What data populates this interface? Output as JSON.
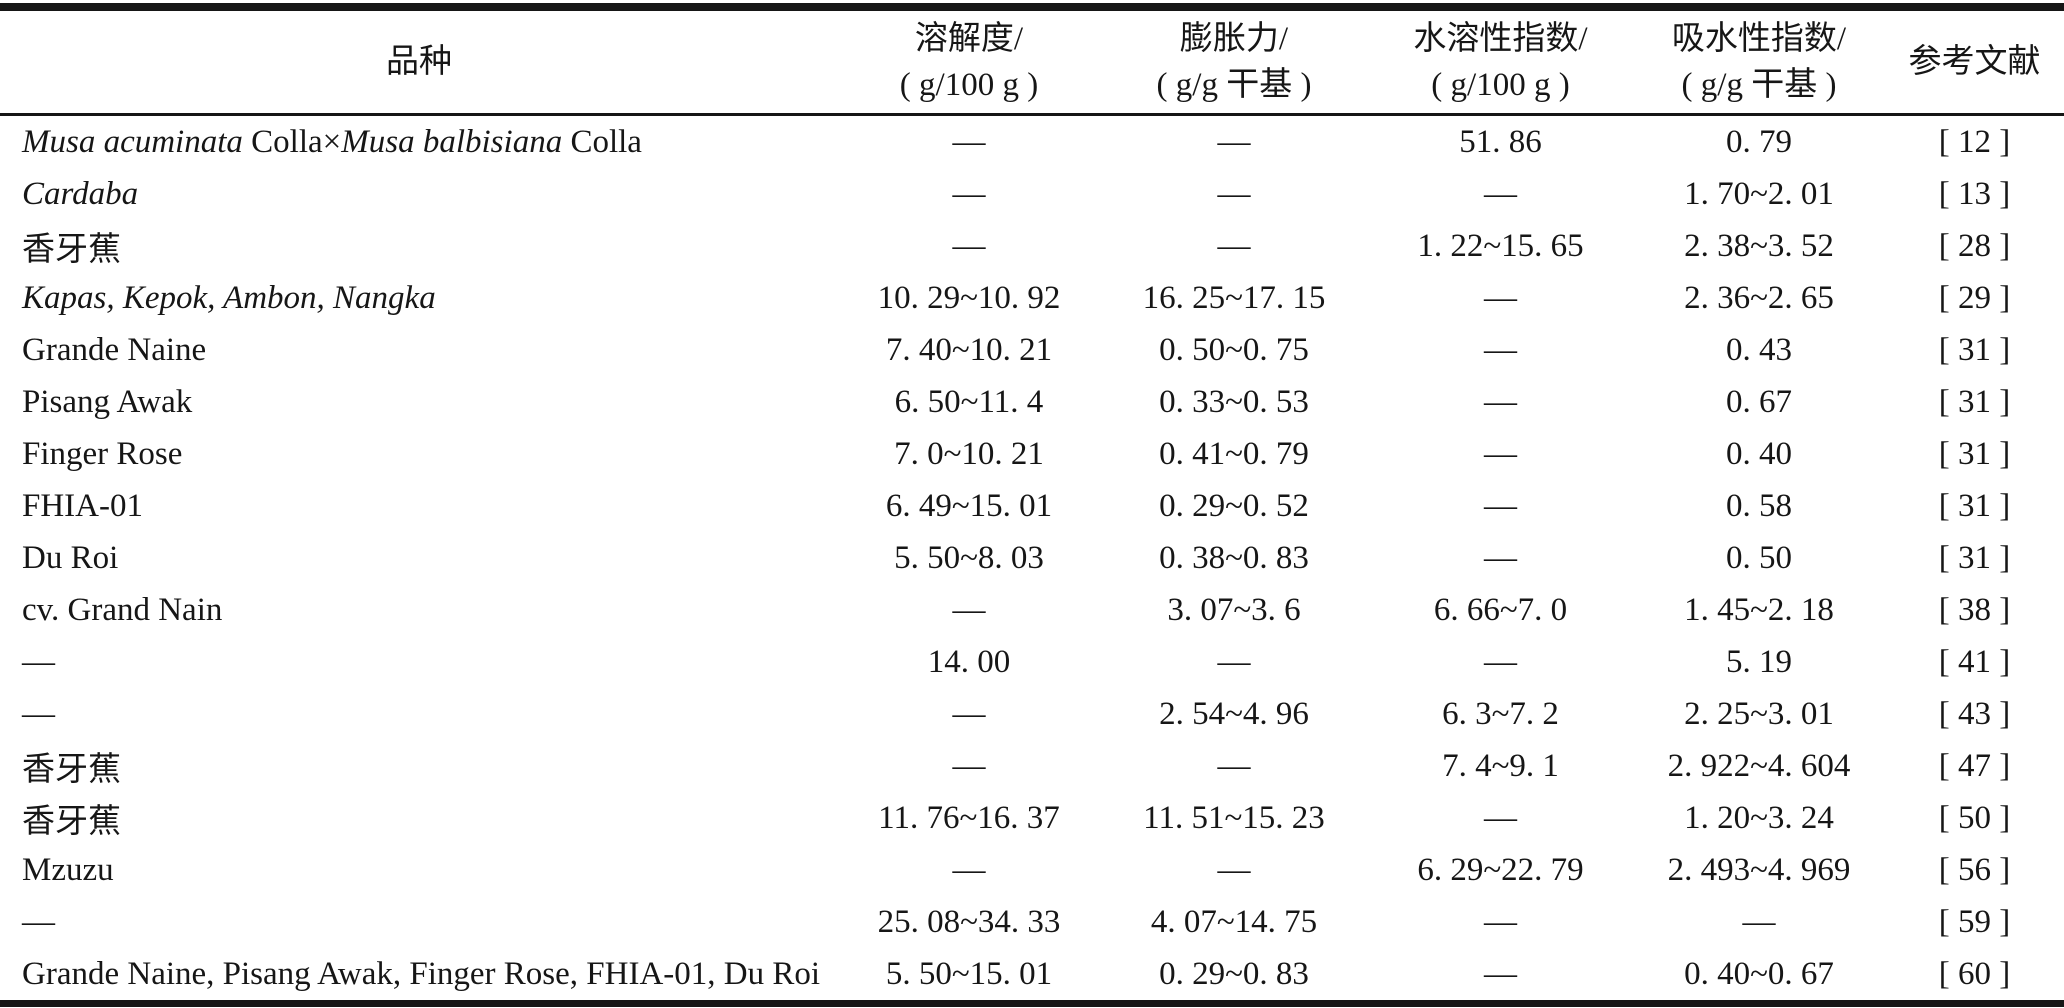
{
  "page": {
    "background": "#ffffff",
    "text_color": "#161616",
    "rule_color": "#161616"
  },
  "table": {
    "columns": [
      {
        "label": "品种",
        "unit": ""
      },
      {
        "label": "溶解度/",
        "unit": "( g/100 g )"
      },
      {
        "label": "膨胀力/",
        "unit": "( g/g 干基 )"
      },
      {
        "label": "水溶性指数/",
        "unit": "( g/100 g )"
      },
      {
        "label": "吸水性指数/",
        "unit": "( g/g 干基 )"
      },
      {
        "label": "参考文献",
        "unit": ""
      }
    ],
    "rows": [
      {
        "variety": [
          {
            "text": "Musa acuminata",
            "italic": true
          },
          {
            "text": " Colla×",
            "italic": false
          },
          {
            "text": "Musa balbisiana",
            "italic": true
          },
          {
            "text": " Colla",
            "italic": false
          }
        ],
        "values": [
          "—",
          "—",
          "51. 86",
          "0. 79"
        ],
        "ref": "[ 12 ]"
      },
      {
        "variety": [
          {
            "text": "Cardaba",
            "italic": true
          }
        ],
        "values": [
          "—",
          "—",
          "—",
          "1. 70~2. 01"
        ],
        "ref": "[ 13 ]"
      },
      {
        "variety": [
          {
            "text": "香牙蕉",
            "italic": false
          }
        ],
        "values": [
          "—",
          "—",
          "1. 22~15. 65",
          "2. 38~3. 52"
        ],
        "ref": "[ 28 ]"
      },
      {
        "variety": [
          {
            "text": "Kapas, Kepok, Ambon, Nangka",
            "italic": true
          }
        ],
        "values": [
          "10. 29~10. 92",
          "16. 25~17. 15",
          "—",
          "2. 36~2. 65"
        ],
        "ref": "[ 29 ]"
      },
      {
        "variety": [
          {
            "text": "Grande Naine",
            "italic": false
          }
        ],
        "values": [
          "7. 40~10. 21",
          "0. 50~0. 75",
          "—",
          "0. 43"
        ],
        "ref": "[ 31 ]"
      },
      {
        "variety": [
          {
            "text": "Pisang Awak",
            "italic": false
          }
        ],
        "values": [
          "6. 50~11. 4",
          "0. 33~0. 53",
          "—",
          "0. 67"
        ],
        "ref": "[ 31 ]"
      },
      {
        "variety": [
          {
            "text": "Finger Rose",
            "italic": false
          }
        ],
        "values": [
          "7. 0~10. 21",
          "0. 41~0. 79",
          "—",
          "0. 40"
        ],
        "ref": "[ 31 ]"
      },
      {
        "variety": [
          {
            "text": "FHIA-01",
            "italic": false
          }
        ],
        "values": [
          "6. 49~15. 01",
          "0. 29~0. 52",
          "—",
          "0. 58"
        ],
        "ref": "[ 31 ]"
      },
      {
        "variety": [
          {
            "text": "Du Roi",
            "italic": false
          }
        ],
        "values": [
          "5. 50~8. 03",
          "0. 38~0. 83",
          "—",
          "0. 50"
        ],
        "ref": "[ 31 ]"
      },
      {
        "variety": [
          {
            "text": "cv. Grand Nain",
            "italic": false
          }
        ],
        "values": [
          "—",
          "3. 07~3. 6",
          "6. 66~7. 0",
          "1. 45~2. 18"
        ],
        "ref": "[ 38 ]"
      },
      {
        "variety": [
          {
            "text": "—",
            "italic": false
          }
        ],
        "values": [
          "14. 00",
          "—",
          "—",
          "5. 19"
        ],
        "ref": "[ 41 ]"
      },
      {
        "variety": [
          {
            "text": "—",
            "italic": false
          }
        ],
        "values": [
          "—",
          "2. 54~4. 96",
          "6. 3~7. 2",
          "2. 25~3. 01"
        ],
        "ref": "[ 43 ]"
      },
      {
        "variety": [
          {
            "text": "香牙蕉",
            "italic": false
          }
        ],
        "values": [
          "—",
          "—",
          "7. 4~9. 1",
          "2. 922~4. 604"
        ],
        "ref": "[ 47 ]"
      },
      {
        "variety": [
          {
            "text": "香牙蕉",
            "italic": false
          }
        ],
        "values": [
          "11. 76~16. 37",
          "11. 51~15. 23",
          "—",
          "1. 20~3. 24"
        ],
        "ref": "[ 50 ]"
      },
      {
        "variety": [
          {
            "text": "Mzuzu",
            "italic": false
          }
        ],
        "values": [
          "—",
          "—",
          "6. 29~22. 79",
          "2. 493~4. 969"
        ],
        "ref": "[ 56 ]"
      },
      {
        "variety": [
          {
            "text": "—",
            "italic": false
          }
        ],
        "values": [
          "25. 08~34. 33",
          "4. 07~14. 75",
          "—",
          "—"
        ],
        "ref": "[ 59 ]"
      },
      {
        "variety": [
          {
            "text": "Grande Naine, Pisang Awak, Finger Rose, FHIA-01, Du Roi",
            "italic": false
          }
        ],
        "values": [
          "5. 50~15. 01",
          "0. 29~0. 83",
          "—",
          "0. 40~0. 67"
        ],
        "ref": "[ 60 ]"
      }
    ]
  }
}
